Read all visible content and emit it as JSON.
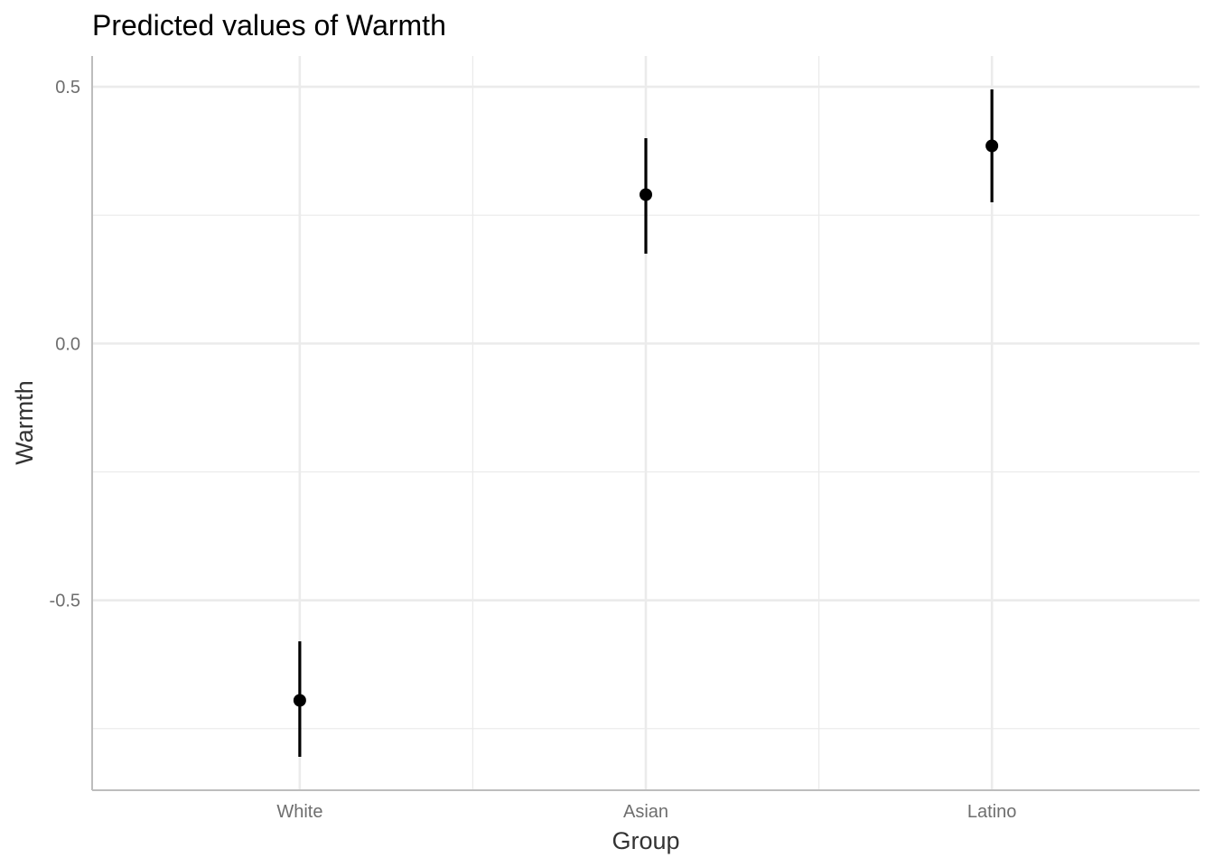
{
  "chart_data": {
    "type": "scatter",
    "title": "Predicted values of Warmth",
    "xlabel": "Group",
    "ylabel": "Warmth",
    "categories": [
      "White",
      "Asian",
      "Latino"
    ],
    "series": [
      {
        "values": [
          -0.695,
          0.29,
          0.385
        ],
        "ci_low": [
          -0.805,
          0.175,
          0.275
        ],
        "ci_high": [
          -0.58,
          0.4,
          0.495
        ]
      }
    ],
    "ylim": [
      -0.87,
      0.56
    ],
    "yticks": [
      -0.5,
      0.0,
      0.5
    ],
    "ytick_labels": [
      "-0.5",
      "0.0",
      "0.5"
    ],
    "grid": true,
    "colors": {
      "point": "#000000",
      "grid": "#ebebeb",
      "axis": "#bdbdbd"
    }
  }
}
